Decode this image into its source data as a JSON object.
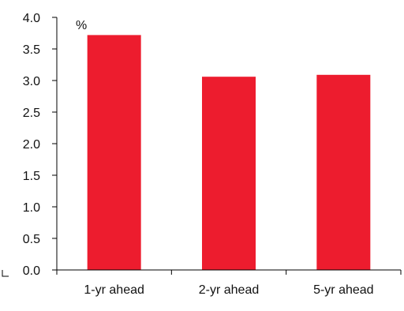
{
  "chart_data": {
    "type": "bar",
    "unit_label": "%",
    "categories": [
      "1-yr ahead",
      "2-yr ahead",
      "5-yr ahead"
    ],
    "series": [
      {
        "values": [
          3.72,
          3.06,
          3.09
        ],
        "color": "#ed1c2e"
      }
    ],
    "ylim": [
      0,
      4.0
    ],
    "yticks": [
      "0.0",
      "0.5",
      "1.0",
      "1.5",
      "2.0",
      "2.5",
      "3.0",
      "3.5",
      "4.0"
    ],
    "grid": false,
    "legend": "none"
  },
  "colors": {
    "bar": "#ed1c2e",
    "axis": "#000000"
  }
}
